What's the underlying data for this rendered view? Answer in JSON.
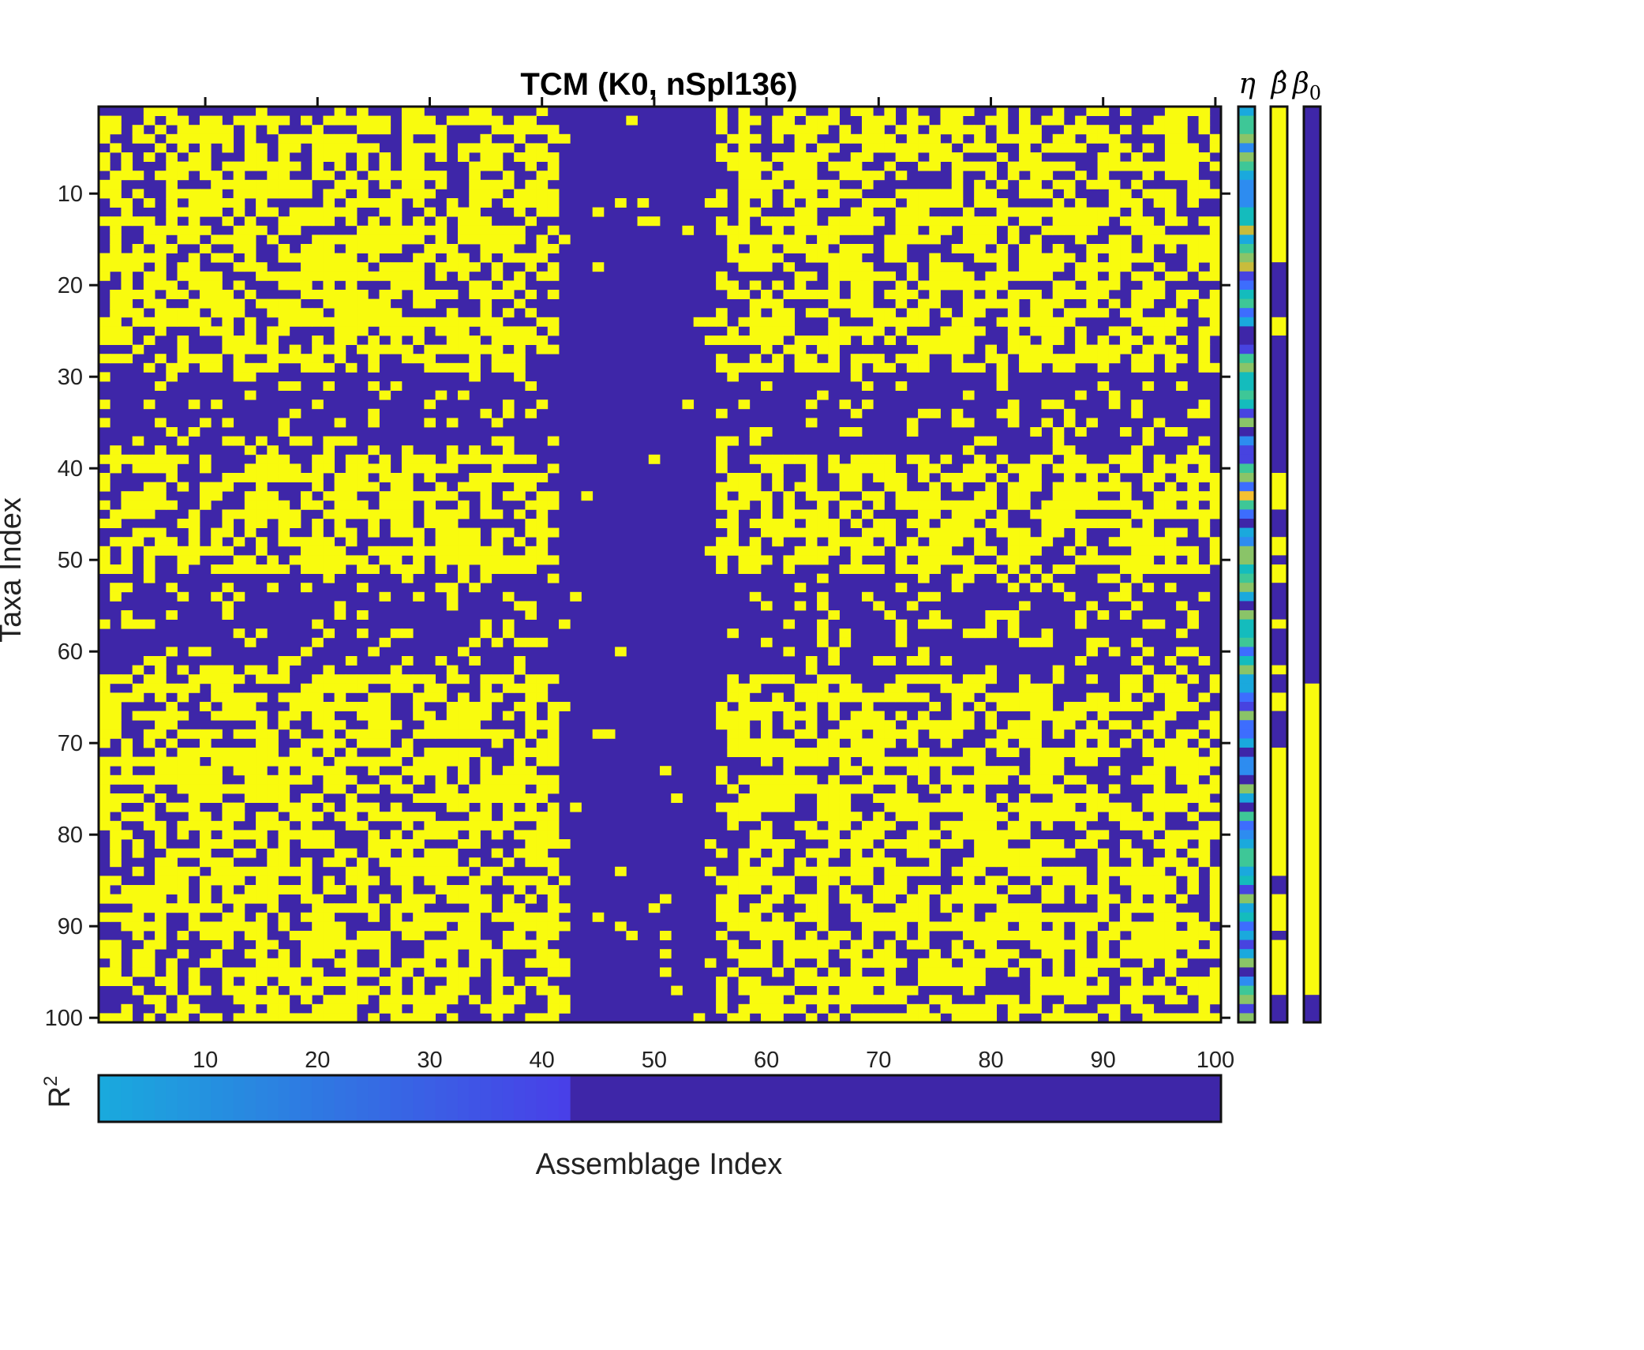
{
  "chart_data": {
    "type": "heatmap",
    "title": "TCM (K0, nSpl136)",
    "xlabel": "Assemblage Index",
    "ylabel": "Taxa Index",
    "x_ticks": [
      "10",
      "20",
      "30",
      "40",
      "50",
      "60",
      "70",
      "80",
      "90",
      "100"
    ],
    "y_ticks": [
      "10",
      "20",
      "30",
      "40",
      "50",
      "60",
      "70",
      "80",
      "90",
      "100"
    ],
    "n_rows": 100,
    "n_cols": 100,
    "colormap": {
      "low": "#3e26a8",
      "high": "#f9fb0e"
    },
    "matrix_note": "binary presence/absence matrix; yellow = 1, purple = 0",
    "side_panels": [
      {
        "label": "η",
        "type": "continuous"
      },
      {
        "label": "β̂",
        "type": "binary",
        "yellow_rows": [
          [
            1,
            17
          ],
          [
            24,
            25
          ],
          [
            41,
            44
          ],
          [
            48,
            49
          ],
          [
            51,
            52
          ],
          [
            57,
            57
          ],
          [
            62,
            62
          ],
          [
            65,
            66
          ],
          [
            71,
            84
          ],
          [
            87,
            90
          ],
          [
            92,
            97
          ]
        ]
      },
      {
        "label": "β0",
        "type": "binary",
        "yellow_rows": [
          [
            64,
            97
          ]
        ]
      }
    ],
    "bottom_panel": {
      "label": "R2",
      "nonzero_cols": 42
    }
  }
}
